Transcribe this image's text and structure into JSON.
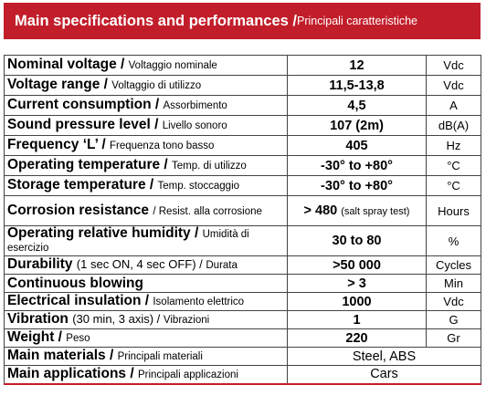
{
  "header": {
    "title_en": "Main specifications and performances / ",
    "title_it": "Principali caratteristiche"
  },
  "rows": [
    {
      "en": "Nominal  voltage / ",
      "paren": "",
      "it": "Voltaggio nominale",
      "value": "12",
      "note": "",
      "unit": "Vdc"
    },
    {
      "en": "Voltage range / ",
      "paren": "",
      "it": "Voltaggio di utilizzo",
      "value": "11,5-13,8",
      "note": "",
      "unit": "Vdc"
    },
    {
      "en": "Current consumption / ",
      "paren": "",
      "it": "Assorbimento",
      "value": "4,5",
      "note": "",
      "unit": "A"
    },
    {
      "en": "Sound pressure level / ",
      "paren": "",
      "it": "Livello sonoro",
      "value": "107 (2m)",
      "note": "",
      "unit": "dB(A)"
    },
    {
      "en": "Frequency ‘L’ / ",
      "paren": "",
      "it": "Frequenza tono basso",
      "value": "405",
      "note": "",
      "unit": "Hz"
    },
    {
      "en": "Operating temperature / ",
      "paren": "",
      "it": "Temp. di utilizzo",
      "value": "-30° to +80°",
      "note": "",
      "unit": "°C"
    },
    {
      "en": "Storage temperature / ",
      "paren": "",
      "it": "Temp. stoccaggio",
      "value": "-30° to +80°",
      "note": "",
      "unit": "°C"
    },
    {
      "en": "Corrosion resistance ",
      "paren": "/ ",
      "it": "Resist. alla corrosione",
      "value": "> 480 ",
      "note": "(salt spray test)",
      "unit": "Hours"
    },
    {
      "en": "Operating relative humidity / ",
      "paren": "",
      "it": "Umidità di esercizio",
      "value": "30 to 80",
      "note": "",
      "unit": "%"
    },
    {
      "en": "Durability ",
      "paren": "(1 sec ON, 4 sec OFF) / ",
      "it": "Durata",
      "value": ">50 000",
      "note": "",
      "unit": "Cycles"
    },
    {
      "en": "Continuous blowing",
      "paren": "",
      "it": "",
      "value": "> 3",
      "note": "",
      "unit": "Min"
    },
    {
      "en": "Electrical insulation / ",
      "paren": "",
      "it": "Isolamento elettrico",
      "value": "1000",
      "note": "",
      "unit": "Vdc"
    },
    {
      "en": "Vibration ",
      "paren": "(30 min, 3 axis) / ",
      "it": "Vibrazioni",
      "value": "1",
      "note": "",
      "unit": "G"
    },
    {
      "en": "Weight / ",
      "paren": "",
      "it": "Peso",
      "value": "220",
      "note": "",
      "unit": "Gr"
    },
    {
      "en": "Main materials / ",
      "paren": "",
      "it": "Principali materiali",
      "value": "Steel, ABS",
      "note": "",
      "unit": ""
    },
    {
      "en": "Main applications / ",
      "paren": "",
      "it": "Principali applicazioni",
      "value": "Cars",
      "note": "",
      "unit": ""
    }
  ]
}
